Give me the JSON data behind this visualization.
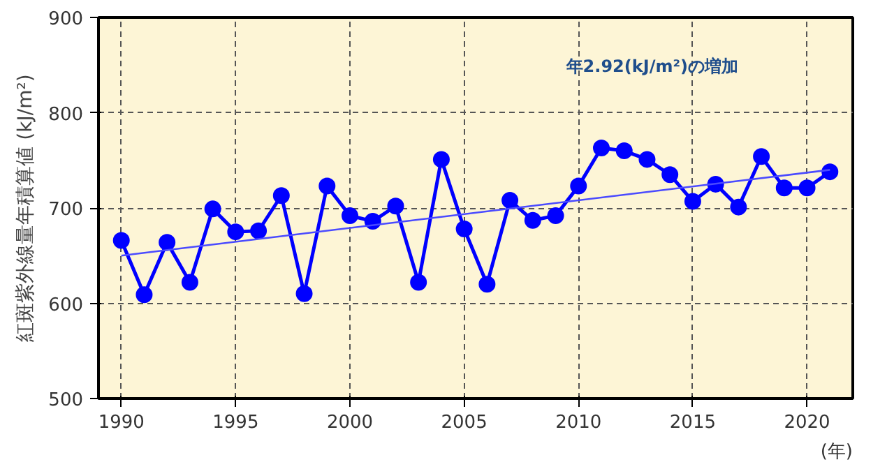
{
  "chart_data": {
    "type": "line",
    "ylabel": "紅斑紫外線量年積算値 (kJ/m²)",
    "xlabel": "(年)",
    "annotations": [
      "年2.92(kJ/m²)の増加"
    ],
    "xlim": [
      1989,
      2022
    ],
    "xticks": [
      1990,
      1995,
      2000,
      2005,
      2010,
      2015,
      2020
    ],
    "ylim": [
      500,
      900
    ],
    "yticks": [
      500,
      600,
      700,
      800,
      900
    ],
    "grid": true,
    "marker": "circle",
    "line_style": "solid",
    "x": [
      1990,
      1991,
      1992,
      1993,
      1994,
      1995,
      1996,
      1997,
      1998,
      1999,
      2000,
      2001,
      2002,
      2003,
      2004,
      2005,
      2006,
      2007,
      2008,
      2009,
      2010,
      2011,
      2012,
      2013,
      2014,
      2015,
      2016,
      2017,
      2018,
      2019,
      2020,
      2021
    ],
    "series": [
      {
        "color": "#0000ff",
        "values": [
          666,
          609,
          664,
          622,
          699,
          675,
          676,
          713,
          610,
          723,
          692,
          686,
          702,
          622,
          751,
          678,
          620,
          708,
          687,
          692,
          723,
          763,
          760,
          751,
          735,
          707,
          725,
          701,
          754,
          721,
          721,
          738
        ]
      },
      {
        "type": "line",
        "color": "#4a4aff",
        "marker": "none",
        "x": [
          1990,
          2021
        ],
        "values": [
          650,
          740
        ]
      }
    ]
  }
}
